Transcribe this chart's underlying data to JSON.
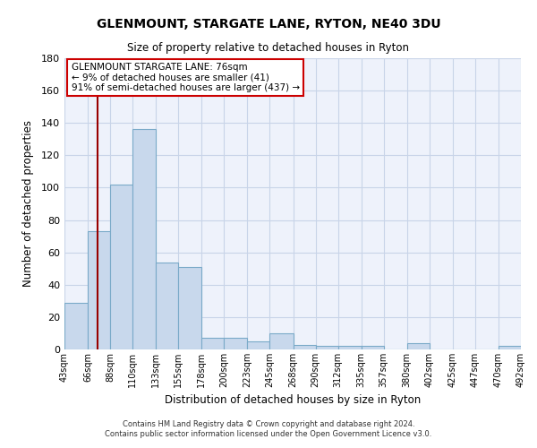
{
  "title": "GLENMOUNT, STARGATE LANE, RYTON, NE40 3DU",
  "subtitle": "Size of property relative to detached houses in Ryton",
  "xlabel": "Distribution of detached houses by size in Ryton",
  "ylabel": "Number of detached properties",
  "bar_color": "#c8d8ec",
  "bar_edge_color": "#7aaac8",
  "background_color": "#eef2fb",
  "grid_color": "#c8d4e8",
  "red_line_x": 76,
  "bins": [
    43,
    66,
    88,
    110,
    133,
    155,
    178,
    200,
    223,
    245,
    268,
    290,
    312,
    335,
    357,
    380,
    402,
    425,
    447,
    470,
    492
  ],
  "counts": [
    29,
    73,
    102,
    136,
    54,
    51,
    7,
    7,
    5,
    10,
    3,
    2,
    2,
    2,
    0,
    4,
    0,
    0,
    0,
    2
  ],
  "tick_labels": [
    "43sqm",
    "66sqm",
    "88sqm",
    "110sqm",
    "133sqm",
    "155sqm",
    "178sqm",
    "200sqm",
    "223sqm",
    "245sqm",
    "268sqm",
    "290sqm",
    "312sqm",
    "335sqm",
    "357sqm",
    "380sqm",
    "402sqm",
    "425sqm",
    "447sqm",
    "470sqm",
    "492sqm"
  ],
  "ylim": [
    0,
    180
  ],
  "yticks": [
    0,
    20,
    40,
    60,
    80,
    100,
    120,
    140,
    160,
    180
  ],
  "annotation_title": "GLENMOUNT STARGATE LANE: 76sqm",
  "annotation_line1": "← 9% of detached houses are smaller (41)",
  "annotation_line2": "91% of semi-detached houses are larger (437) →",
  "annotation_box_edge": "#cc0000",
  "footer_line1": "Contains HM Land Registry data © Crown copyright and database right 2024.",
  "footer_line2": "Contains public sector information licensed under the Open Government Licence v3.0."
}
